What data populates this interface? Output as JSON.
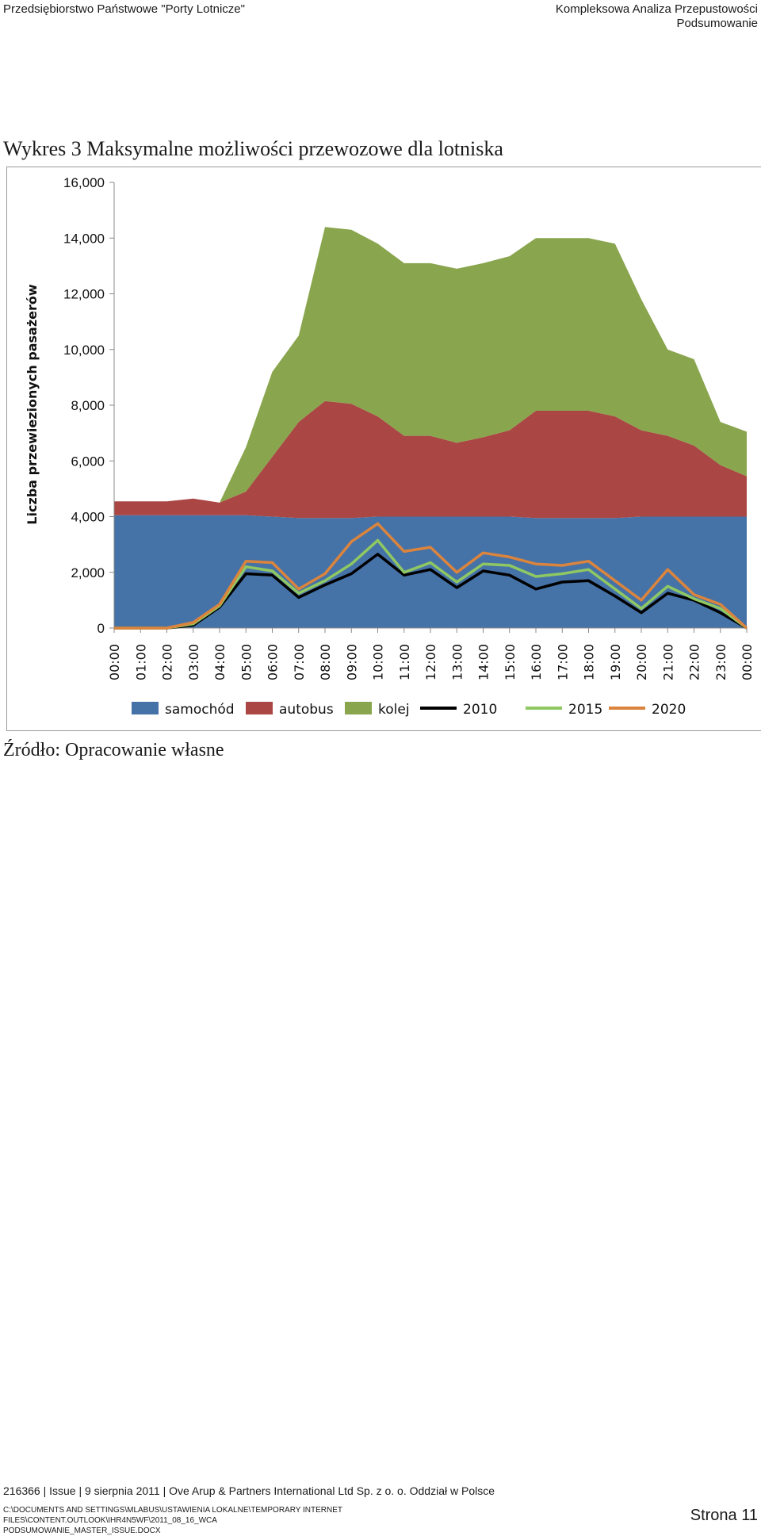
{
  "header": {
    "left": "Przedsiębiorstwo Państwowe \"Porty Lotnicze\"",
    "right_line1": "Kompleksowa Analiza Przepustowości",
    "right_line2": "Podsumowanie"
  },
  "figure_title": "Wykres 3 Maksymalne możliwości przewozowe dla lotniska",
  "source": "Źródło: Opracowanie własne",
  "footer": {
    "line": "216366 | Issue | 9 sierpnia 2011 | Ove Arup & Partners International Ltd Sp. z o. o. Oddział w Polsce",
    "path_line1": "C:\\DOCUMENTS AND SETTINGS\\MLABUS\\USTAWIENIA LOKALNE\\TEMPORARY INTERNET FILES\\CONTENT.OUTLOOK\\IHR4N5WF\\2011_08_16_WCA",
    "path_line2": "PODSUMOWANIE_MASTER_ISSUE.DOCX",
    "page": "Strona 11"
  },
  "chart_data": {
    "type": "area",
    "title": "",
    "ylabel": "Liczba przewiezionych pasażerów",
    "xlabel": "",
    "ylim": [
      0,
      16000
    ],
    "yticks": [
      0,
      2000,
      4000,
      6000,
      8000,
      10000,
      12000,
      14000,
      16000
    ],
    "ytick_labels": [
      "0",
      "2,000",
      "4,000",
      "6,000",
      "8,000",
      "10,000",
      "12,000",
      "14,000",
      "16,000"
    ],
    "grid": false,
    "legend_position": "bottom",
    "x": [
      "00:00",
      "01:00",
      "02:00",
      "03:00",
      "04:00",
      "05:00",
      "06:00",
      "07:00",
      "08:00",
      "09:00",
      "10:00",
      "11:00",
      "12:00",
      "13:00",
      "14:00",
      "15:00",
      "16:00",
      "17:00",
      "18:00",
      "19:00",
      "20:00",
      "21:00",
      "22:00",
      "23:00",
      "00:00"
    ],
    "stacked_areas": [
      {
        "name": "samochód",
        "color": "#4572a7",
        "values": [
          4050,
          4050,
          4050,
          4050,
          4050,
          4050,
          4000,
          3950,
          3950,
          3950,
          4000,
          4000,
          4000,
          4000,
          4000,
          4000,
          3950,
          3950,
          3950,
          3950,
          4000,
          4000,
          4000,
          4000,
          4000
        ]
      },
      {
        "name": "autobus",
        "color": "#aa4643",
        "values": [
          500,
          500,
          500,
          600,
          450,
          850,
          2150,
          3450,
          4200,
          4100,
          3600,
          2900,
          2900,
          2650,
          2850,
          3100,
          3850,
          3850,
          3850,
          3650,
          3100,
          2900,
          2550,
          1850,
          1450
        ]
      },
      {
        "name": "kolej",
        "color": "#89a54e",
        "values": [
          0,
          0,
          0,
          0,
          0,
          1600,
          3050,
          3100,
          6250,
          6250,
          6200,
          6200,
          6200,
          6250,
          6250,
          6250,
          6200,
          6200,
          6200,
          6200,
          4700,
          3100,
          3100,
          1550,
          1600
        ]
      }
    ],
    "series": [
      {
        "name": "2010",
        "color": "#000000",
        "values": [
          0,
          0,
          0,
          100,
          750,
          1950,
          1900,
          1100,
          1550,
          1950,
          2650,
          1900,
          2100,
          1450,
          2050,
          1900,
          1400,
          1650,
          1700,
          1150,
          550,
          1250,
          1000,
          550,
          0
        ]
      },
      {
        "name": "2015",
        "color": "#8fc862",
        "values": [
          0,
          0,
          0,
          150,
          800,
          2200,
          2050,
          1250,
          1700,
          2300,
          3150,
          2000,
          2350,
          1650,
          2300,
          2250,
          1850,
          1950,
          2100,
          1400,
          700,
          1500,
          1050,
          700,
          0
        ]
      },
      {
        "name": "2020",
        "color": "#db843d",
        "values": [
          0,
          0,
          0,
          200,
          850,
          2400,
          2350,
          1400,
          1950,
          3100,
          3750,
          2750,
          2900,
          2000,
          2700,
          2550,
          2300,
          2250,
          2400,
          1700,
          1000,
          2100,
          1200,
          850,
          0
        ]
      }
    ]
  }
}
